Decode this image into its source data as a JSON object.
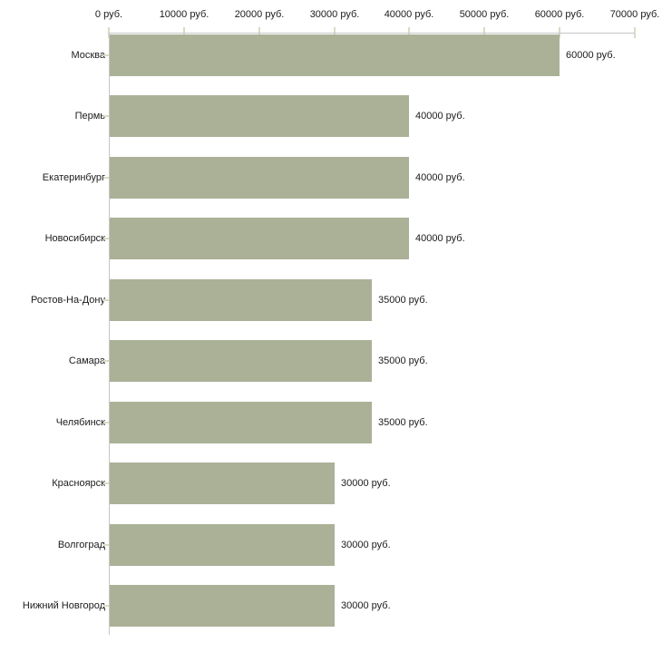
{
  "chart_data": {
    "type": "bar",
    "orientation": "horizontal",
    "title": "",
    "xlabel": "",
    "ylabel": "",
    "categories": [
      "Москва",
      "Пермь",
      "Екатеринбург",
      "Новосибирск",
      "Ростов-На-Дону",
      "Самара",
      "Челябинск",
      "Красноярск",
      "Волгоград",
      "Нижний Новгород"
    ],
    "values": [
      60000,
      40000,
      40000,
      40000,
      35000,
      35000,
      35000,
      30000,
      30000,
      30000
    ],
    "value_labels": [
      "60000 руб.",
      "40000 руб.",
      "40000 руб.",
      "40000 руб.",
      "35000 руб.",
      "35000 руб.",
      "35000 руб.",
      "30000 руб.",
      "30000 руб.",
      "30000 руб."
    ],
    "unit": "руб.",
    "xlim": [
      0,
      70000
    ],
    "x_tick_values": [
      0,
      10000,
      20000,
      30000,
      40000,
      50000,
      60000,
      70000
    ],
    "x_tick_labels": [
      "0 руб.",
      "10000 руб.",
      "20000 руб.",
      "30000 руб.",
      "40000 руб.",
      "50000 руб.",
      "60000 руб.",
      "70000 руб."
    ],
    "grid": false,
    "legend_position": "none",
    "colors": {
      "bar": "#abb197",
      "axis_line": "#c6c6c6",
      "x_tick_mark": "#dadcc2",
      "y_tick_mark": "#d8d2c6",
      "text": "#1b1b1b",
      "background": "#ffffff"
    }
  }
}
